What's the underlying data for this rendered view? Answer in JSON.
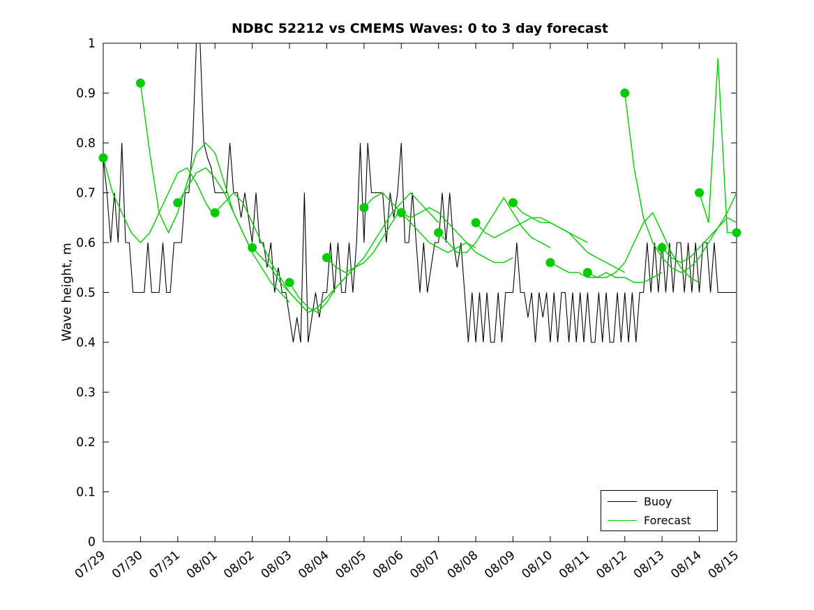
{
  "legend": {
    "items": [
      {
        "label": "Buoy",
        "color": "#000000"
      },
      {
        "label": "Forecast",
        "color": "#00cc00"
      }
    ]
  },
  "chart_data": {
    "type": "line",
    "title": "NDBC 52212 vs CMEMS Waves: 0 to 3 day forecast",
    "xlabel": "",
    "ylabel": "Wave height, m",
    "ylim": [
      0,
      1
    ],
    "x_range": [
      0,
      17
    ],
    "yticks": [
      0,
      0.1,
      0.2,
      0.3,
      0.4,
      0.5,
      0.6,
      0.7,
      0.8,
      0.9,
      1
    ],
    "ytick_labels": [
      "0",
      "0.1",
      "0.2",
      "0.3",
      "0.4",
      "0.5",
      "0.6",
      "0.7",
      "0.8",
      "0.9",
      "1"
    ],
    "xtick_labels": [
      "07/29",
      "07/30",
      "07/31",
      "08/01",
      "08/02",
      "08/03",
      "08/04",
      "08/05",
      "08/06",
      "08/07",
      "08/08",
      "08/09",
      "08/10",
      "08/11",
      "08/12",
      "08/13",
      "08/14",
      "08/15"
    ],
    "grid": false,
    "legend_position": "bottom-right",
    "series": [
      {
        "name": "Buoy",
        "color": "#000000",
        "x_step_days": 0.1,
        "x_start_day": 0,
        "values": [
          0.77,
          0.7,
          0.6,
          0.7,
          0.6,
          0.8,
          0.6,
          0.6,
          0.5,
          0.5,
          0.5,
          0.5,
          0.6,
          0.5,
          0.5,
          0.5,
          0.6,
          0.5,
          0.5,
          0.6,
          0.6,
          0.6,
          0.7,
          0.7,
          0.8,
          1.0,
          1.0,
          0.8,
          0.77,
          0.75,
          0.7,
          0.7,
          0.7,
          0.7,
          0.8,
          0.7,
          0.7,
          0.65,
          0.7,
          0.65,
          0.6,
          0.7,
          0.6,
          0.6,
          0.55,
          0.6,
          0.5,
          0.55,
          0.5,
          0.5,
          0.45,
          0.4,
          0.45,
          0.4,
          0.7,
          0.4,
          0.45,
          0.5,
          0.45,
          0.5,
          0.5,
          0.6,
          0.5,
          0.6,
          0.5,
          0.5,
          0.6,
          0.5,
          0.6,
          0.8,
          0.6,
          0.8,
          0.7,
          0.7,
          0.7,
          0.7,
          0.6,
          0.7,
          0.65,
          0.7,
          0.8,
          0.6,
          0.6,
          0.7,
          0.6,
          0.5,
          0.6,
          0.5,
          0.55,
          0.6,
          0.6,
          0.7,
          0.6,
          0.7,
          0.6,
          0.55,
          0.6,
          0.5,
          0.4,
          0.5,
          0.4,
          0.5,
          0.4,
          0.5,
          0.4,
          0.4,
          0.5,
          0.4,
          0.5,
          0.5,
          0.5,
          0.6,
          0.5,
          0.5,
          0.45,
          0.5,
          0.4,
          0.5,
          0.45,
          0.5,
          0.4,
          0.5,
          0.4,
          0.5,
          0.5,
          0.4,
          0.5,
          0.4,
          0.5,
          0.4,
          0.5,
          0.4,
          0.4,
          0.5,
          0.4,
          0.5,
          0.4,
          0.4,
          0.5,
          0.4,
          0.5,
          0.4,
          0.5,
          0.4,
          0.5,
          0.5,
          0.6,
          0.5,
          0.6,
          0.5,
          0.6,
          0.5,
          0.6,
          0.5,
          0.6,
          0.6,
          0.5,
          0.6,
          0.5,
          0.6,
          0.5,
          0.6,
          0.6,
          0.5,
          0.6,
          0.5,
          0.5,
          0.5,
          0.5,
          0.5,
          0.5
        ]
      },
      {
        "name": "Forecast",
        "color": "#00cc00",
        "step_days": 0.25,
        "marker": "filled-circle-at-start",
        "marker_radius": 6.5,
        "runs": [
          {
            "start_day": 0,
            "values": [
              0.77,
              0.7,
              0.66,
              0.62,
              0.6,
              0.62,
              0.66,
              0.7,
              0.74,
              0.75,
              0.72,
              0.68,
              0.65
            ]
          },
          {
            "start_day": 1,
            "values": [
              0.92,
              0.78,
              0.66,
              0.62,
              0.66,
              0.72,
              0.78,
              0.8,
              0.78,
              0.72,
              0.66,
              0.62,
              0.58
            ]
          },
          {
            "start_day": 2,
            "values": [
              0.68,
              0.71,
              0.74,
              0.75,
              0.73,
              0.7,
              0.66,
              0.62,
              0.58,
              0.55,
              0.52,
              0.5,
              0.48
            ]
          },
          {
            "start_day": 3,
            "values": [
              0.66,
              0.68,
              0.7,
              0.68,
              0.64,
              0.6,
              0.56,
              0.53,
              0.5,
              0.48,
              0.46,
              0.47,
              0.49
            ]
          },
          {
            "start_day": 4,
            "values": [
              0.59,
              0.57,
              0.55,
              0.52,
              0.5,
              0.48,
              0.46,
              0.47,
              0.49,
              0.51,
              0.53,
              0.55,
              0.56
            ]
          },
          {
            "start_day": 5,
            "values": [
              0.52,
              0.49,
              0.47,
              0.46,
              0.48,
              0.51,
              0.53,
              0.55,
              0.56,
              0.58,
              0.61,
              0.64,
              0.67
            ]
          },
          {
            "start_day": 6,
            "values": [
              0.57,
              0.55,
              0.54,
              0.55,
              0.57,
              0.6,
              0.63,
              0.66,
              0.68,
              0.7,
              0.68,
              0.66,
              0.64
            ]
          },
          {
            "start_day": 7,
            "values": [
              0.67,
              0.69,
              0.7,
              0.68,
              0.66,
              0.65,
              0.66,
              0.67,
              0.66,
              0.64,
              0.62,
              0.6,
              0.59
            ]
          },
          {
            "start_day": 8,
            "values": [
              0.66,
              0.64,
              0.62,
              0.6,
              0.59,
              0.58,
              0.59,
              0.6,
              0.58,
              0.57,
              0.56,
              0.56,
              0.57
            ]
          },
          {
            "start_day": 9,
            "values": [
              0.62,
              0.6,
              0.58,
              0.58,
              0.6,
              0.63,
              0.66,
              0.69,
              0.66,
              0.63,
              0.61,
              0.6,
              0.59
            ]
          },
          {
            "start_day": 10,
            "values": [
              0.64,
              0.62,
              0.61,
              0.62,
              0.63,
              0.64,
              0.65,
              0.65,
              0.64,
              0.63,
              0.62,
              0.61,
              0.6
            ]
          },
          {
            "start_day": 11,
            "values": [
              0.68,
              0.66,
              0.65,
              0.64,
              0.64,
              0.63,
              0.62,
              0.6,
              0.58,
              0.57,
              0.56,
              0.55,
              0.54
            ]
          },
          {
            "start_day": 12,
            "values": [
              0.56,
              0.55,
              0.54,
              0.54,
              0.53,
              0.53,
              0.54,
              0.53,
              0.53,
              0.52,
              0.52,
              0.53,
              0.54
            ]
          },
          {
            "start_day": 13,
            "values": [
              0.54,
              0.53,
              0.53,
              0.54,
              0.56,
              0.6,
              0.64,
              0.66,
              0.62,
              0.58,
              0.55,
              0.53,
              0.52
            ]
          },
          {
            "start_day": 14,
            "values": [
              0.9,
              0.75,
              0.65,
              0.6,
              0.57,
              0.55,
              0.54,
              0.55,
              0.57,
              0.6,
              0.63,
              0.66,
              0.7
            ]
          },
          {
            "start_day": 15,
            "values": [
              0.59,
              0.57,
              0.56,
              0.57,
              0.59,
              0.61,
              0.63,
              0.65,
              0.64,
              0.63,
              0.62,
              0.62,
              0.62
            ]
          },
          {
            "start_day": 16,
            "values": [
              0.7,
              0.64,
              0.97,
              0.62,
              0.62
            ]
          },
          {
            "start_day": 17,
            "values": [
              0.62
            ]
          }
        ]
      }
    ]
  }
}
